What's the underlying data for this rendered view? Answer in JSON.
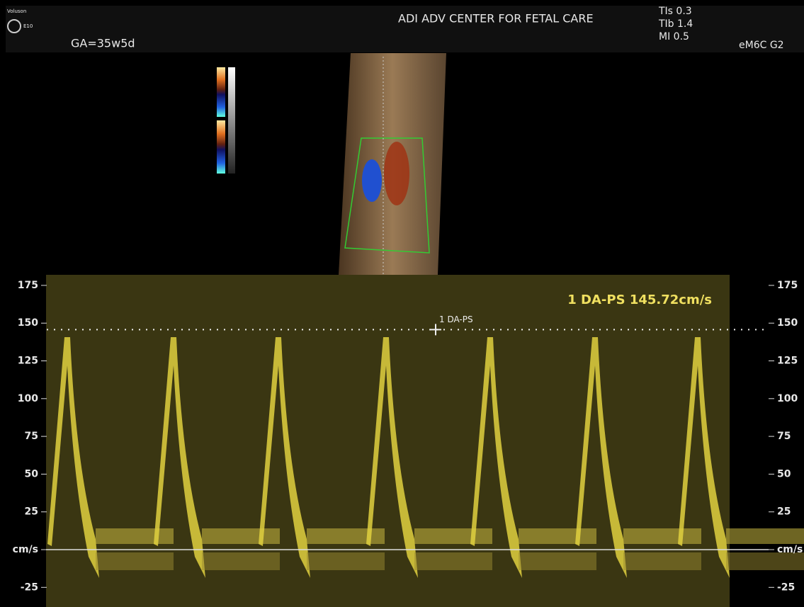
{
  "header": {
    "brand": "Voluson",
    "model": "E10",
    "gestational_age": "GA=35w5d",
    "site": "ADI ADV CENTER FOR FETAL CARE",
    "indices": [
      "TIs 0.3",
      "TIb 1.4",
      "MI 0.5"
    ],
    "probe": "eM6C G2"
  },
  "doppler": {
    "ylim": [
      -38,
      182
    ],
    "yticks": [
      175,
      150,
      125,
      100,
      75,
      50,
      25,
      {
        "value": 0,
        "label": "cm/s"
      },
      -25
    ],
    "measurement": {
      "name": "1 DA-PS",
      "value": 145.72,
      "label": "1 DA-PS 145.72cm/s"
    }
  }
}
